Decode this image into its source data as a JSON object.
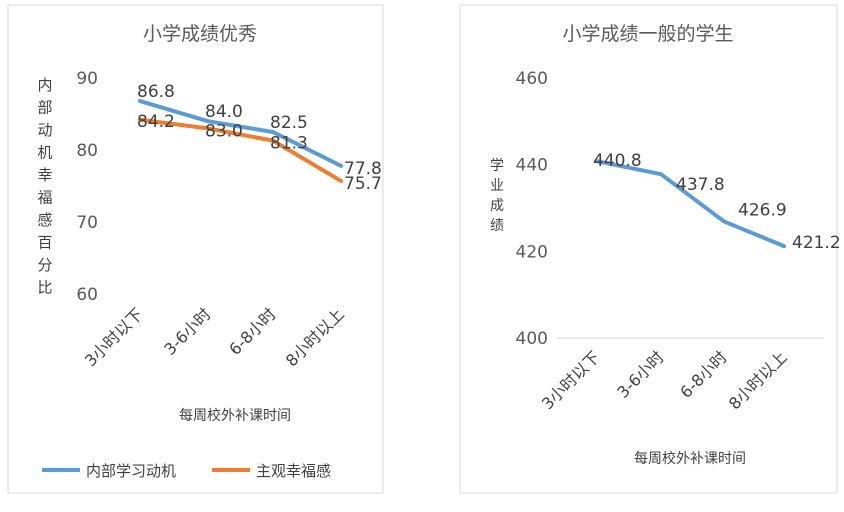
{
  "chart_data": [
    {
      "type": "line",
      "title": "小学成绩优秀",
      "xlabel": "每周校外补课时间",
      "ylabel": "内部动机幸福感百分比",
      "categories": [
        "3小时以下",
        "3-6小时",
        "6-8小时",
        "8小时以上"
      ],
      "ylim": [
        60,
        90
      ],
      "yticks": [
        "90",
        "80",
        "70",
        "60"
      ],
      "series": [
        {
          "name": "内部学习动机",
          "values": [
            86.8,
            84.0,
            82.5,
            77.8
          ],
          "labels": [
            "86.8",
            "84.0",
            "82.5",
            "77.8"
          ],
          "color": "#5b9bd5"
        },
        {
          "name": "主观幸福感",
          "values": [
            84.2,
            83.0,
            81.3,
            75.7
          ],
          "labels": [
            "84.2",
            "83.0",
            "81.3",
            "75.7"
          ],
          "color": "#ed7d31"
        }
      ],
      "legend": "bottom"
    },
    {
      "type": "line",
      "title": "小学成绩一般的学生",
      "xlabel": "每周校外补课时间",
      "ylabel": "学业成绩",
      "categories": [
        "3小时以下",
        "3-6小时",
        "6-8小时",
        "8小时以上"
      ],
      "ylim": [
        400,
        460
      ],
      "yticks": [
        "460",
        "440",
        "420",
        "400"
      ],
      "series": [
        {
          "values": [
            440.8,
            437.8,
            426.9,
            421.2
          ],
          "labels": [
            "440.8",
            "437.8",
            "426.9",
            "421.2"
          ],
          "color": "#5b9bd5"
        }
      ]
    }
  ]
}
